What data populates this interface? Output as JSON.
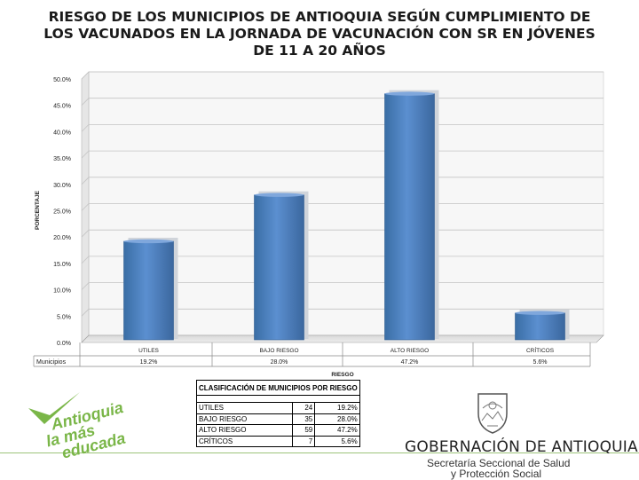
{
  "title_lines": [
    "RIESGO DE LOS MUNICIPIOS DE ANTIOQUIA SEGÚN CUMPLIMIENTO DE",
    "LOS VACUNADOS EN LA JORNADA DE VACUNACIÓN CON SR EN JÓVENES",
    "DE 11 A 20 AÑOS"
  ],
  "chart_data": {
    "type": "bar",
    "title": "RIESGO DE LOS MUNICIPIOS DE ANTIOQUIA SEGÚN CUMPLIMIENTO DE LOS VACUNADOS EN LA JORNADA DE VACUNACIÓN CON SR EN JÓVENES DE 11 A 20 AÑOS",
    "categories": [
      "UTILES",
      "BAJO RIESGO",
      "ALTO RIESGO",
      "CRÍTICOS"
    ],
    "series": [
      {
        "name": "Municipios",
        "values": [
          19.2,
          28.0,
          47.2,
          5.6
        ]
      }
    ],
    "value_labels": [
      "19.2%",
      "28.0%",
      "47.2%",
      "5.6%"
    ],
    "ylabel": "PORCENTAJE",
    "xlabel": "RIESGO",
    "ylim": [
      0,
      50
    ],
    "yticks": [
      "0.0%",
      "5.0%",
      "10.0%",
      "15.0%",
      "20.0%",
      "25.0%",
      "30.0%",
      "35.0%",
      "40.0%",
      "45.0%",
      "50.0%"
    ],
    "grid": true,
    "bar_color": "#4f81bd",
    "data_table": true
  },
  "table": {
    "header": "CLASIFICACIÓN DE MUNICIPIOS POR RIESGO",
    "rows": [
      {
        "label": "UTILES",
        "count": "24",
        "pct": "19.2%"
      },
      {
        "label": "BAJO RIESGO",
        "count": "35",
        "pct": "28.0%"
      },
      {
        "label": "ALTO RIESGO",
        "count": "59",
        "pct": "47.2%"
      },
      {
        "label": "CRÍTICOS",
        "count": "7",
        "pct": "5.6%"
      }
    ]
  },
  "footer": {
    "logo_left_lines": [
      "Antioquia",
      "la más",
      "educada"
    ],
    "gov_name": "GOBERNACIÓN DE ANTIOQUIA",
    "secretaria_line1": "Secretaría Seccional de Salud",
    "secretaria_line2": "y Protección Social"
  },
  "colors": {
    "accent_green": "#7ab648",
    "bar_blue": "#4f81bd"
  }
}
